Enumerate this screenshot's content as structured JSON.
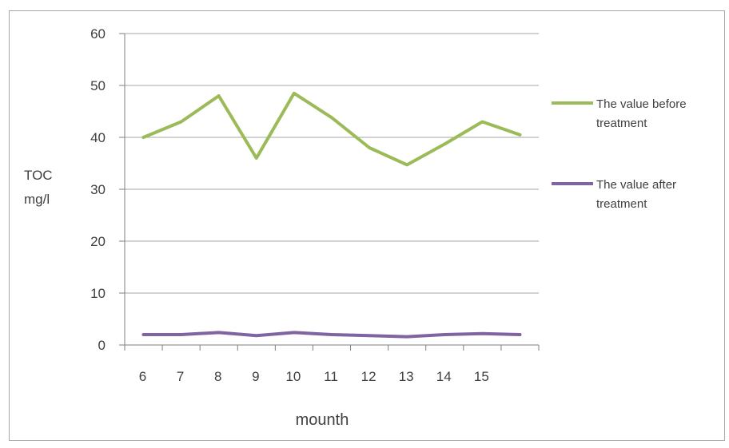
{
  "chart_data": {
    "type": "line",
    "title": "",
    "ylabel": [
      "TOC",
      "mg/l"
    ],
    "xlabel": "mounth",
    "ylim": [
      0,
      60
    ],
    "yticks": [
      0,
      10,
      20,
      30,
      40,
      50,
      60
    ],
    "grid": true,
    "legend_position": "right",
    "categories": [
      "6",
      "7",
      "8",
      "9",
      "10",
      "11",
      "12",
      "13",
      "14",
      "15",
      ""
    ],
    "series": [
      {
        "name": [
          "The value before",
          "treatment"
        ],
        "color": "#9bbb59",
        "values": [
          40,
          43,
          48,
          36,
          48.5,
          43.8,
          38,
          34.7,
          38.7,
          43,
          40.5
        ]
      },
      {
        "name": [
          "The value after",
          "treatment"
        ],
        "color": "#8064a2",
        "values": [
          2,
          2,
          2.4,
          1.8,
          2.4,
          2,
          1.8,
          1.6,
          2,
          2.2,
          2
        ]
      }
    ]
  }
}
